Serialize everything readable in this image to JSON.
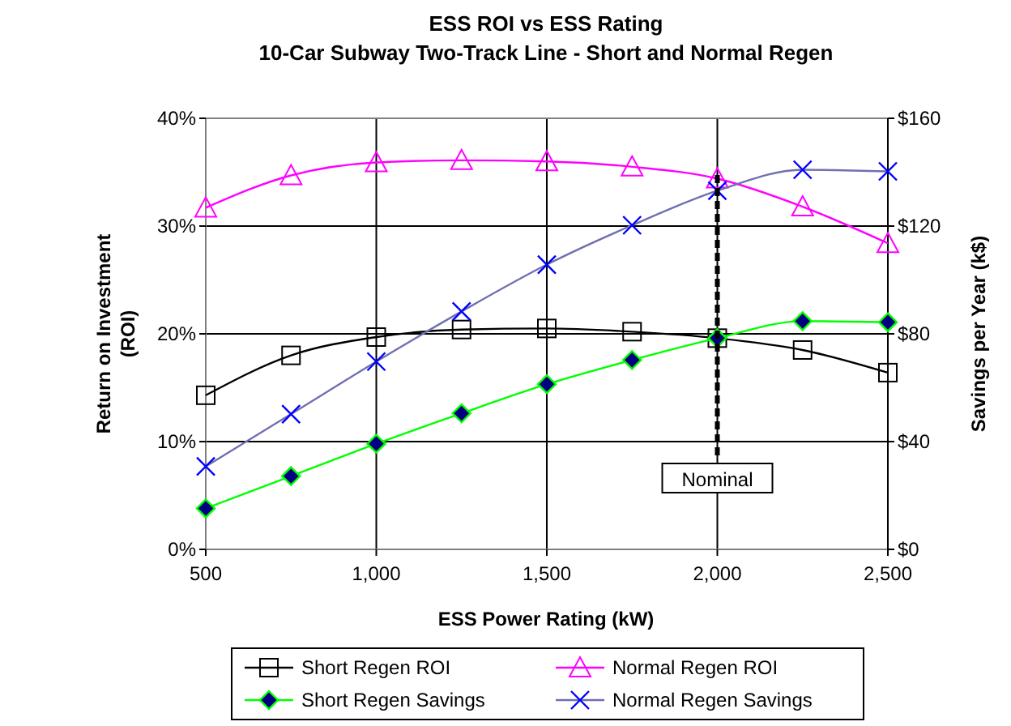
{
  "chart_data": {
    "type": "line",
    "title": "ESS ROI vs ESS Rating",
    "subtitle": "10-Car Subway Two-Track Line - Short and Normal Regen",
    "xlabel": "ESS Power Rating (kW)",
    "ylabel": "Return on Investment (ROI)",
    "y2label": "Savings per Year (k$)",
    "x": [
      500,
      750,
      1000,
      1250,
      1500,
      1750,
      2000,
      2250,
      2500
    ],
    "xlim": [
      500,
      2500
    ],
    "xticks": [
      {
        "value": 500,
        "label": "500"
      },
      {
        "value": 1000,
        "label": "1,000"
      },
      {
        "value": 1500,
        "label": "1,500"
      },
      {
        "value": 2000,
        "label": "2,000"
      },
      {
        "value": 2500,
        "label": "2,500"
      }
    ],
    "ylim": [
      0,
      40
    ],
    "yticks": [
      {
        "value": 0,
        "label": "0%"
      },
      {
        "value": 10,
        "label": "10%"
      },
      {
        "value": 20,
        "label": "20%"
      },
      {
        "value": 30,
        "label": "30%"
      },
      {
        "value": 40,
        "label": "40%"
      }
    ],
    "y2lim": [
      0,
      160
    ],
    "y2ticks": [
      {
        "value": 0,
        "label": "$0"
      },
      {
        "value": 40,
        "label": "$40"
      },
      {
        "value": 80,
        "label": "$80"
      },
      {
        "value": 120,
        "label": "$120"
      },
      {
        "value": 160,
        "label": "$160"
      }
    ],
    "grid": true,
    "legend": "bottom",
    "line_style": "solid",
    "ref_lines": [
      {
        "axis": "x",
        "value": 2000,
        "label": "Nominal",
        "color": "#000000",
        "line_style": "dashed"
      }
    ],
    "series": [
      {
        "name": "Short Regen ROI",
        "color": "#000000",
        "marker": "square",
        "values": [
          14.3,
          18.0,
          19.7,
          20.4,
          20.5,
          20.2,
          19.6,
          18.5,
          16.4
        ]
      },
      {
        "name": "Normal Regen ROI",
        "color": "#ff00ff",
        "marker": "triangle",
        "values": [
          31.7,
          34.7,
          35.9,
          36.1,
          36.0,
          35.5,
          34.4,
          31.8,
          28.4
        ]
      },
      {
        "name": "Short Regen Savings",
        "color": "#00ff00",
        "marker": "diamond",
        "axis": "y2",
        "values": [
          15.2,
          27.2,
          39.2,
          50.5,
          61.3,
          70.3,
          78.4,
          84.7,
          84.3
        ]
      },
      {
        "name": "Normal Regen Savings",
        "color": "#7070b0",
        "marker": "cross",
        "axis": "y2",
        "values": [
          30.8,
          50.2,
          69.7,
          88.3,
          105.7,
          120.3,
          133.1,
          140.9,
          140.3
        ]
      }
    ]
  }
}
